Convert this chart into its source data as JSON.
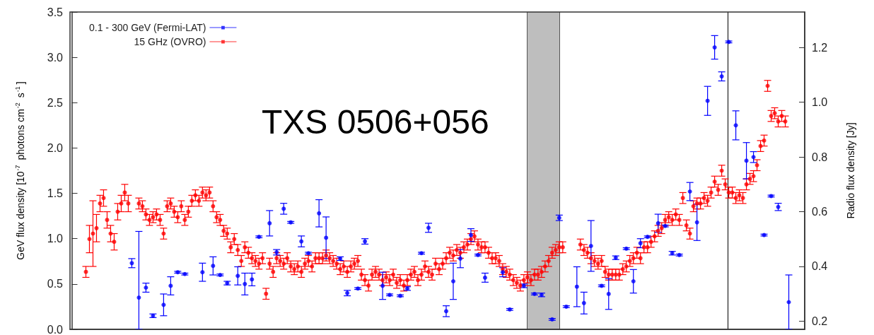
{
  "chart_data": {
    "type": "scatter",
    "annotations": [
      "TXS 0506+056"
    ],
    "ylabel": "GeV flux density [10$^{-7}$ photons cm$^{-2}$ s$^{-1}$]",
    "y2label": "Radio flux density [Jy]",
    "categories": [
      null,
      null,
      null,
      null,
      null,
      null,
      null,
      null,
      null,
      null,
      null,
      null,
      null,
      null,
      null,
      null,
      null,
      null,
      null,
      null,
      null,
      null,
      null,
      null,
      null,
      null,
      null,
      null,
      null,
      null,
      null,
      null,
      null,
      null,
      null,
      null,
      null,
      null,
      null,
      null,
      null,
      null,
      null,
      null,
      null,
      null,
      null,
      null,
      null,
      null,
      null,
      null,
      null,
      null,
      null,
      null,
      null,
      null,
      null,
      null,
      null,
      null,
      null,
      null,
      null,
      null,
      null,
      null,
      null,
      null,
      null,
      null,
      null,
      null,
      null,
      null,
      null,
      null,
      null,
      null,
      null,
      null,
      null,
      null,
      null,
      null,
      null,
      null,
      null,
      null,
      null,
      null,
      null,
      null,
      null,
      null,
      null,
      null,
      null,
      null,
      null,
      null,
      null,
      null,
      null,
      null,
      null,
      null,
      null,
      null,
      null,
      null,
      null,
      null,
      null,
      null,
      null,
      null,
      null,
      null,
      null,
      null,
      null,
      null,
      null,
      null,
      null,
      null,
      null,
      null,
      null,
      null,
      null,
      null,
      null,
      null,
      null,
      null,
      null,
      null,
      null,
      null,
      null,
      null,
      null,
      null,
      null,
      null,
      null,
      null,
      null,
      null,
      null,
      null,
      null,
      null,
      null,
      null,
      null,
      null,
      null,
      null,
      null,
      null,
      null,
      null,
      null,
      null,
      null,
      null,
      null,
      null,
      null,
      null,
      null,
      null,
      null,
      null,
      null,
      null,
      null,
      null,
      null,
      null,
      null,
      null,
      null,
      null,
      null,
      null,
      null,
      null,
      null,
      null,
      null,
      null,
      null,
      null,
      null,
      null,
      null,
      null,
      null,
      null,
      null,
      null,
      null,
      null
    ],
    "series": [
      {
        "name": "15 GHz (OVRO)",
        "color": "#ff0000",
        "axis": "y2",
        "values": [
          null,
          null,
          null,
          null,
          0.38,
          0.5,
          0.52,
          0.54,
          0.63,
          0.65,
          0.57,
          0.52,
          0.49,
          0.6,
          0.63,
          0.67,
          0.63,
          null,
          null,
          0.63,
          0.62,
          0.59,
          0.57,
          0.58,
          0.59,
          0.57,
          0.52,
          0.62,
          0.63,
          0.6,
          0.58,
          0.62,
          0.57,
          0.6,
          0.64,
          0.66,
          0.64,
          0.67,
          0.66,
          0.67,
          0.62,
          0.58,
          0.57,
          0.53,
          0.52,
          0.47,
          0.5,
          0.46,
          0.42,
          0.47,
          0.45,
          0.43,
          0.42,
          0.41,
          0.43,
          0.3,
          0.41,
          0.38,
          0.43,
          0.42,
          0.41,
          0.43,
          0.4,
          0.39,
          0.4,
          0.38,
          0.41,
          0.42,
          0.4,
          0.43,
          0.43,
          0.43,
          0.44,
          0.43,
          0.42,
          0.41,
          0.39,
          0.4,
          0.38,
          0.4,
          0.41,
          0.42,
          0.37,
          0.35,
          0.33,
          0.37,
          0.38,
          0.37,
          0.35,
          0.36,
          0.35,
          0.37,
          0.34,
          0.35,
          0.33,
          0.35,
          0.37,
          0.38,
          0.35,
          0.37,
          0.4,
          0.38,
          0.37,
          0.41,
          0.39,
          0.41,
          0.43,
          0.45,
          0.44,
          0.46,
          0.45,
          0.47,
          0.48,
          0.5,
          0.51,
          0.48,
          0.47,
          0.47,
          0.45,
          0.43,
          0.43,
          0.42,
          0.39,
          0.38,
          0.37,
          0.35,
          0.34,
          0.33,
          0.35,
          0.36,
          0.35,
          0.37,
          0.37,
          0.38,
          0.4,
          0.42,
          0.45,
          0.46,
          0.47,
          0.47,
          null,
          null,
          null,
          null,
          0.48,
          0.46,
          0.45,
          0.43,
          0.42,
          0.41,
          0.42,
          0.38,
          0.37,
          0.37,
          0.37,
          0.37,
          0.39,
          0.4,
          0.42,
          0.43,
          0.45,
          0.43,
          0.47,
          0.47,
          0.49,
          0.51,
          0.53,
          0.54,
          0.57,
          0.58,
          0.57,
          0.59,
          0.57,
          0.65,
          0.55,
          0.52,
          0.62,
          0.63,
          0.63,
          0.65,
          0.64,
          0.67,
          0.71,
          0.68,
          0.75,
          0.7,
          0.67,
          0.67,
          0.65,
          0.66,
          0.65,
          0.7,
          0.72,
          0.73,
          0.77,
          0.84,
          0.86,
          1.06,
          0.95,
          0.96,
          0.93,
          0.95,
          0.93,
          null,
          null,
          null,
          null,
          null
        ],
        "errors": [
          null,
          null,
          null,
          null,
          0.02,
          0.05,
          0.12,
          0.05,
          0.03,
          0.03,
          0.03,
          0.03,
          0.03,
          0.03,
          0.03,
          0.03,
          0.03,
          null,
          null,
          0.02,
          0.02,
          0.02,
          0.02,
          0.02,
          0.02,
          0.02,
          0.02,
          0.02,
          0.02,
          0.02,
          0.02,
          0.02,
          0.02,
          0.02,
          0.02,
          0.02,
          0.02,
          0.02,
          0.02,
          0.02,
          0.02,
          0.02,
          0.02,
          0.02,
          0.02,
          0.02,
          0.02,
          0.02,
          0.02,
          0.02,
          0.02,
          0.02,
          0.02,
          0.02,
          0.02,
          0.02,
          0.02,
          0.02,
          0.02,
          0.02,
          0.02,
          0.02,
          0.02,
          0.02,
          0.02,
          0.02,
          0.02,
          0.02,
          0.02,
          0.02,
          0.02,
          0.02,
          0.02,
          0.02,
          0.02,
          0.02,
          0.02,
          0.02,
          0.02,
          0.02,
          0.02,
          0.02,
          0.02,
          0.02,
          0.02,
          0.02,
          0.02,
          0.02,
          0.02,
          0.02,
          0.02,
          0.02,
          0.02,
          0.02,
          0.02,
          0.02,
          0.02,
          0.02,
          0.02,
          0.02,
          0.02,
          0.02,
          0.02,
          0.02,
          0.02,
          0.02,
          0.02,
          0.02,
          0.02,
          0.02,
          0.02,
          0.02,
          0.02,
          0.02,
          0.02,
          0.02,
          0.02,
          0.02,
          0.02,
          0.02,
          0.02,
          0.02,
          0.02,
          0.02,
          0.02,
          0.02,
          0.02,
          0.02,
          0.02,
          0.02,
          0.02,
          0.02,
          0.02,
          0.02,
          0.02,
          0.02,
          0.02,
          0.02,
          0.02,
          0.02,
          null,
          null,
          null,
          null,
          0.02,
          0.02,
          0.02,
          0.02,
          0.02,
          0.02,
          0.02,
          0.02,
          0.02,
          0.02,
          0.02,
          0.02,
          0.02,
          0.02,
          0.02,
          0.02,
          0.02,
          0.02,
          0.02,
          0.02,
          0.02,
          0.02,
          0.02,
          0.02,
          0.02,
          0.02,
          0.02,
          0.02,
          0.02,
          0.02,
          0.02,
          0.02,
          0.02,
          0.02,
          0.02,
          0.02,
          0.02,
          0.02,
          0.02,
          0.02,
          0.02,
          0.02,
          0.02,
          0.02,
          0.02,
          0.02,
          0.02,
          0.02,
          0.02,
          0.02,
          0.02,
          0.02,
          0.02,
          0.02,
          0.02,
          0.02,
          0.02,
          0.02,
          0.02,
          null,
          null,
          null,
          null,
          null
        ]
      },
      {
        "name": "0.1 - 300 GeV (Fermi-LAT)",
        "color": "#0000ff",
        "values": [
          null,
          null,
          null,
          null,
          null,
          null,
          null,
          null,
          null,
          null,
          null,
          null,
          null,
          null,
          null,
          null,
          null,
          0.73,
          null,
          0.35,
          null,
          0.46,
          null,
          0.15,
          null,
          null,
          0.27,
          null,
          0.48,
          null,
          0.63,
          null,
          0.61,
          null,
          null,
          null,
          null,
          0.63,
          null,
          null,
          0.7,
          null,
          0.6,
          null,
          0.51,
          null,
          null,
          0.59,
          null,
          0.5,
          null,
          0.55,
          null,
          1.02,
          null,
          null,
          1.17,
          null,
          0.85,
          null,
          1.33,
          null,
          1.18,
          null,
          null,
          0.97,
          null,
          0.84,
          null,
          null,
          1.28,
          null,
          1.01,
          null,
          null,
          null,
          0.78,
          null,
          0.4,
          null,
          null,
          0.45,
          null,
          0.97,
          null,
          null,
          null,
          null,
          0.48,
          null,
          0.38,
          null,
          null,
          0.37,
          null,
          0.45,
          null,
          null,
          null,
          0.84,
          null,
          1.12,
          null,
          null,
          null,
          null,
          0.2,
          null,
          0.53,
          null,
          0.78,
          null,
          null,
          1.04,
          null,
          0.82,
          null,
          0.57,
          null,
          null,
          null,
          null,
          0.63,
          null,
          0.22,
          null,
          null,
          null,
          0.48,
          null,
          null,
          0.39,
          null,
          0.38,
          null,
          null,
          0.11,
          null,
          1.23,
          null,
          0.25,
          null,
          null,
          0.47,
          null,
          0.29,
          null,
          0.92,
          null,
          null,
          0.48,
          null,
          0.39,
          null,
          0.79,
          null,
          null,
          0.89,
          null,
          0.53,
          null,
          0.95,
          null,
          1.02,
          null,
          null,
          1.17,
          null,
          1.14,
          null,
          0.84,
          null,
          0.82,
          null,
          null,
          1.52,
          null,
          1.18,
          null,
          null,
          2.52,
          null,
          3.11,
          null,
          2.79,
          null,
          3.17,
          null,
          2.25,
          null,
          null,
          1.86,
          null,
          1.9,
          null,
          null,
          1.04,
          null,
          1.47,
          null,
          1.35,
          null,
          null,
          0.3,
          null,
          null,
          null,
          null
        ],
        "errors": [
          null,
          null,
          null,
          null,
          null,
          null,
          null,
          null,
          null,
          null,
          null,
          null,
          null,
          null,
          null,
          null,
          null,
          0.05,
          null,
          [
            0,
            1.08
          ],
          null,
          0.05,
          null,
          0.02,
          null,
          null,
          0.12,
          null,
          0.1,
          null,
          0.01,
          null,
          0.01,
          null,
          null,
          null,
          null,
          0.1,
          null,
          null,
          0.1,
          null,
          0.01,
          null,
          0.02,
          null,
          null,
          0.1,
          null,
          0.12,
          null,
          0.07,
          null,
          0.01,
          null,
          null,
          0.14,
          null,
          0.03,
          null,
          0.06,
          null,
          0.01,
          null,
          null,
          0.06,
          null,
          0.01,
          null,
          null,
          0.15,
          null,
          0.23,
          null,
          null,
          null,
          0.02,
          null,
          0.03,
          null,
          null,
          0.01,
          null,
          0.03,
          null,
          null,
          null,
          null,
          0.15,
          null,
          0.01,
          null,
          null,
          0.01,
          null,
          0.02,
          null,
          null,
          null,
          0.01,
          null,
          0.05,
          null,
          null,
          null,
          null,
          0.06,
          null,
          0.2,
          null,
          0.1,
          null,
          null,
          0.07,
          null,
          0.01,
          null,
          0.05,
          null,
          null,
          null,
          null,
          0.05,
          null,
          0.01,
          null,
          null,
          null,
          0.02,
          null,
          null,
          0.01,
          null,
          0.02,
          null,
          null,
          0.01,
          null,
          0.03,
          null,
          0.01,
          null,
          null,
          0.22,
          null,
          0.12,
          null,
          0.28,
          null,
          null,
          0.01,
          null,
          0.17,
          null,
          0.02,
          null,
          null,
          0.01,
          null,
          0.13,
          null,
          0.05,
          null,
          0.01,
          null,
          null,
          0.1,
          null,
          0.01,
          null,
          0.02,
          null,
          0.01,
          null,
          null,
          0.1,
          null,
          0.2,
          null,
          null,
          0.16,
          null,
          0.13,
          null,
          0.05,
          null,
          0.01,
          null,
          0.16,
          null,
          null,
          0.2,
          null,
          0.06,
          null,
          null,
          0.01,
          null,
          0.01,
          null,
          0.04,
          null,
          null,
          [
            0,
            0.6
          ],
          null,
          null,
          null,
          null
        ]
      }
    ],
    "ylim": [
      0,
      3.5
    ],
    "yticks": [
      {
        "value": 0,
        "label": "0.0"
      },
      0.5,
      {
        "value": 1,
        "label": "1.0"
      },
      1.5,
      {
        "value": 2,
        "label": "2.0"
      },
      2.5,
      {
        "value": 3,
        "label": "3.0"
      },
      3.5
    ],
    "y2lim": [
      0.17,
      1.33
    ],
    "y2ticks": [
      0.2,
      0.4,
      0.6,
      0.8,
      {
        "value": 1,
        "label": "1.0"
      },
      1.2
    ],
    "marker": "circle",
    "grid": false,
    "legend": "top left",
    "tick_labels": "y"
  }
}
